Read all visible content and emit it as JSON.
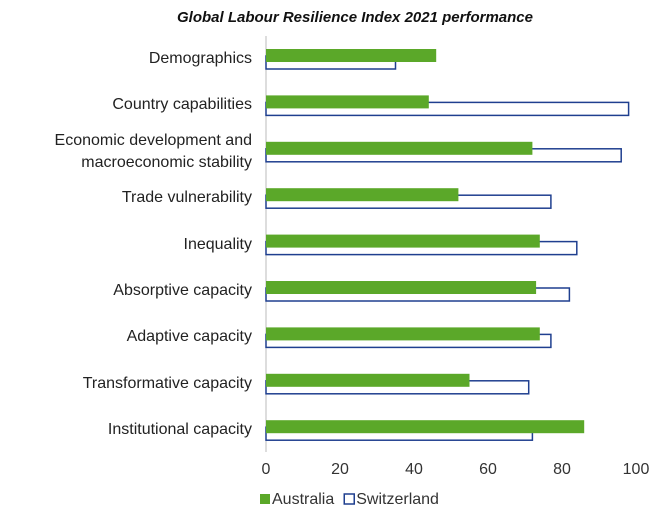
{
  "chart_data": {
    "type": "bar",
    "orientation": "horizontal",
    "title": "Global Labour Resilience Index 2021 performance",
    "categories": [
      "Demographics",
      "Country capabilities",
      "Economic development and\nmacroeconomic stability",
      "Trade vulnerability",
      "Inequality",
      "Absorptive capacity",
      "Adaptive capacity",
      "Transformative capacity",
      "Institutional capacity"
    ],
    "series": [
      {
        "name": "Australia",
        "color": "#5ba829",
        "values": [
          46,
          44,
          72,
          52,
          74,
          73,
          74,
          55,
          86
        ]
      },
      {
        "name": "Switzerland",
        "color": "#1f3f8f",
        "values": [
          35,
          98,
          96,
          77,
          84,
          82,
          77,
          71,
          72
        ]
      }
    ],
    "xlim": [
      0,
      100
    ],
    "xticks": [
      0,
      20,
      40,
      60,
      80,
      100
    ],
    "grid": false,
    "legend": "bottom"
  }
}
